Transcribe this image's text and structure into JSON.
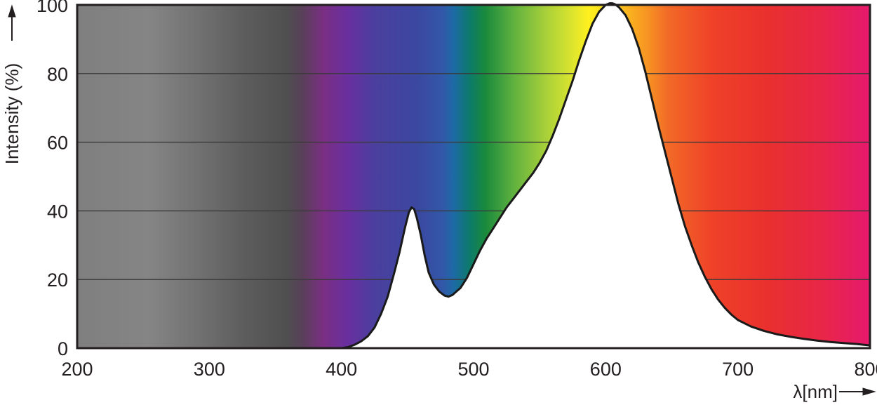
{
  "chart_data": {
    "type": "area",
    "title": "",
    "xlabel": "λ[nm]",
    "ylabel": "Intensity (%)",
    "xlim": [
      200,
      800
    ],
    "ylim": [
      0,
      100
    ],
    "xticks": [
      200,
      300,
      400,
      500,
      600,
      700,
      800
    ],
    "yticks": [
      0,
      20,
      40,
      60,
      80,
      100
    ],
    "grid": true,
    "background": "visible spectrum colour gradient (UV grey → violet → blue → green → yellow → orange → red)",
    "series": [
      {
        "x": [
          375,
          390,
          400,
          405,
          410,
          415,
          420,
          425,
          430,
          435,
          440,
          444,
          448,
          451,
          453,
          455,
          457,
          460,
          463,
          466,
          470,
          474,
          478,
          481,
          484,
          487,
          490,
          495,
          500,
          505,
          510,
          515,
          520,
          525,
          530,
          535,
          540,
          545,
          550,
          555,
          560,
          565,
          570,
          575,
          580,
          585,
          590,
          595,
          600,
          603,
          605,
          607,
          610,
          615,
          620,
          625,
          630,
          635,
          640,
          645,
          650,
          655,
          660,
          665,
          670,
          675,
          680,
          685,
          690,
          695,
          700,
          710,
          720,
          730,
          740,
          750,
          760,
          770,
          780,
          790,
          795,
          800
        ],
        "y": [
          0,
          0,
          0,
          0.3,
          1,
          2,
          3.5,
          6,
          10,
          15,
          22,
          28,
          35,
          39.5,
          41,
          40.5,
          38,
          33,
          27,
          22,
          18.5,
          16.5,
          15.3,
          15,
          15.5,
          16.5,
          17.5,
          20.5,
          24.5,
          28.5,
          32,
          35,
          38,
          41,
          43.5,
          46,
          48.5,
          51,
          54,
          57.5,
          62,
          67,
          72.5,
          78,
          84,
          89.5,
          94.5,
          98,
          100,
          100.5,
          100.5,
          100.2,
          99.3,
          97,
          93,
          87.5,
          80.5,
          72.5,
          64.5,
          57,
          49.5,
          42,
          35.5,
          30,
          25,
          20.8,
          17.2,
          14.2,
          11.8,
          9.8,
          8.2,
          6.3,
          5,
          4,
          3.3,
          2.7,
          2.2,
          1.8,
          1.5,
          1.2,
          1,
          0.8
        ]
      }
    ]
  }
}
